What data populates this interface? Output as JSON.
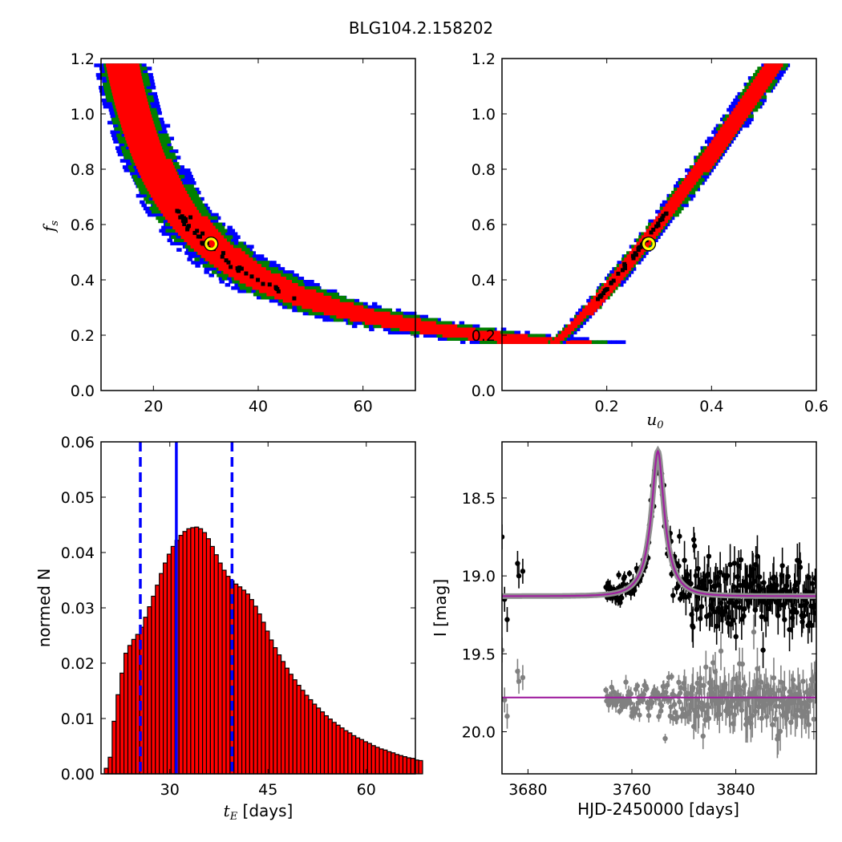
{
  "figure_title": "BLG104.2.158202",
  "colors": {
    "contour_1sigma": "#ff0000",
    "contour_2sigma": "#008000",
    "contour_3sigma": "#0000ff",
    "best_chain": "#000000",
    "best_fit_marker": "#ffff00",
    "histogram_bar": "#ff0000",
    "median_line": "#0000ff",
    "model_curve": "#a020a0",
    "data_points": "#000000",
    "residuals": "#808080"
  },
  "chart_data": [
    {
      "id": "tE_vs_fs",
      "type": "heatmap",
      "title": "",
      "xlabel": "",
      "ylabel": "f_s",
      "xlim": [
        10,
        70
      ],
      "ylim": [
        0,
        1.2
      ],
      "xticks": [
        "20",
        "40",
        "60"
      ],
      "yticks": [
        "0.0",
        "0.2",
        "0.4",
        "0.6",
        "0.8",
        "1.0",
        "1.2"
      ],
      "relation": "t_E ≈ 16.0 / f_s (curved band)",
      "band_fs_range": [
        0.17,
        1.18
      ],
      "best_fit": {
        "x": 31,
        "y": 0.53
      },
      "levels": [
        "1-sigma (red)",
        "2-sigma (green)",
        "3-sigma (blue)"
      ]
    },
    {
      "id": "u0_vs_fs",
      "type": "heatmap",
      "title": "",
      "xlabel": "u_0",
      "ylabel": "",
      "xlim": [
        0,
        0.6
      ],
      "ylim": [
        0,
        1.2
      ],
      "xticks": [
        "0.2",
        "0.4",
        "0.6"
      ],
      "yticks": [
        "0.0",
        "0.2",
        "0.4",
        "0.6",
        "0.8",
        "1.0",
        "1.2"
      ],
      "relation": "u_0 increases monotonically with f_s (u_0 ≈ 0.10 at f_s 0.17, 0.28 at 0.53, 0.52 at 1.18)",
      "best_fit": {
        "x": 0.28,
        "y": 0.53
      },
      "levels": [
        "1-sigma (red)",
        "2-sigma (green)",
        "3-sigma (blue)"
      ]
    },
    {
      "id": "tE_histogram",
      "type": "bar",
      "title": "",
      "xlabel": "t_E [days]",
      "ylabel": "normed N",
      "xlim": [
        19.5,
        67.5
      ],
      "ylim": [
        0,
        0.06
      ],
      "xticks": [
        "30",
        "45",
        "60"
      ],
      "yticks": [
        "0.00",
        "0.01",
        "0.02",
        "0.03",
        "0.04",
        "0.05",
        "0.06"
      ],
      "bin_width": 0.6,
      "bin_start": 20.0,
      "values": [
        0.001,
        0.003,
        0.0095,
        0.0143,
        0.0182,
        0.0218,
        0.0232,
        0.0243,
        0.0252,
        0.0265,
        0.0283,
        0.0302,
        0.0321,
        0.0341,
        0.0362,
        0.0381,
        0.0397,
        0.0411,
        0.0422,
        0.0431,
        0.0438,
        0.0443,
        0.0445,
        0.0446,
        0.0443,
        0.0436,
        0.0425,
        0.0411,
        0.0396,
        0.0381,
        0.0368,
        0.0357,
        0.0349,
        0.0343,
        0.0338,
        0.0332,
        0.0325,
        0.0315,
        0.0303,
        0.0289,
        0.0274,
        0.0258,
        0.0242,
        0.0228,
        0.0215,
        0.0203,
        0.0191,
        0.018,
        0.017,
        0.016,
        0.0151,
        0.0142,
        0.0134,
        0.0126,
        0.0119,
        0.0112,
        0.0105,
        0.0099,
        0.0093,
        0.0088,
        0.0083,
        0.0078,
        0.0074,
        0.0069,
        0.0065,
        0.0062,
        0.0058,
        0.0055,
        0.0051,
        0.0048,
        0.0045,
        0.0043,
        0.004,
        0.0038,
        0.0035,
        0.0033,
        0.0031,
        0.0029,
        0.0028,
        0.0025,
        0.0024
      ],
      "median_line": 31.0,
      "percentile_lines": [
        25.5,
        39.5
      ]
    },
    {
      "id": "light_curve",
      "type": "scatter",
      "title": "",
      "xlabel": "HJD-2450000 [days]",
      "ylabel": "I [mag]",
      "xlim": [
        3660,
        3902
      ],
      "ylim": [
        20.27,
        18.14
      ],
      "y_inverted": true,
      "xticks": [
        "3680",
        "3760",
        "3840"
      ],
      "yticks": [
        "18.5",
        "19.0",
        "19.5",
        "20.0"
      ],
      "model": {
        "t0": 3780,
        "baseline_mag": 19.13,
        "peak_mag": 18.2,
        "tE": 31.0,
        "u0": 0.28,
        "f_s": 0.53
      },
      "residual_offset_mag": 19.78,
      "series": [
        {
          "name": "",
          "role": "photometry",
          "color": "#000000"
        },
        {
          "name": "",
          "role": "residuals",
          "color": "#808080"
        }
      ]
    }
  ]
}
